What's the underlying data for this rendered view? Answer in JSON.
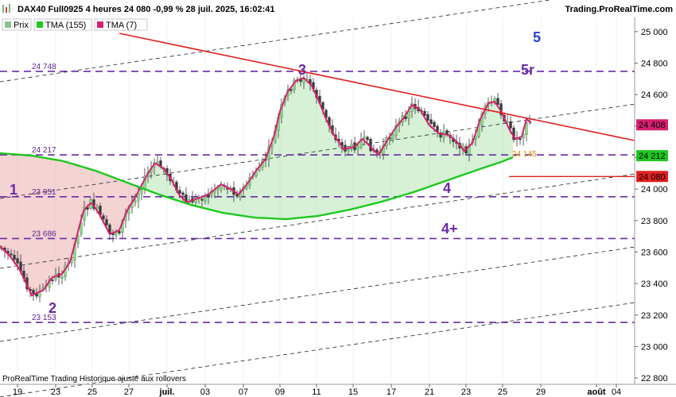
{
  "header": {
    "title": "DAX40 Full0925 4 heures 24 080 -0,99 % 28 juil. 2025, 16:02:41",
    "source": "Trading.ProRealTime.com"
  },
  "legend": [
    {
      "label": "Prix",
      "color": "#8bc28b"
    },
    {
      "label": "TMA (155)",
      "color": "#1ec81e"
    },
    {
      "label": "TMA (7)",
      "color": "#d6206e"
    }
  ],
  "footer": "ProRealTime Trading  Historique ajusté aux rollovers",
  "chart_data": {
    "type": "candlestick",
    "y_axis": {
      "range": [
        22760,
        25090
      ],
      "ticks": [
        25000,
        24800,
        24600,
        24400,
        24200,
        24000,
        23800,
        23600,
        23400,
        23200,
        23000,
        22800
      ],
      "tick_labels": [
        "25 000",
        "24 800",
        "24 600",
        "24 400",
        "24 200",
        "24 000",
        "23 800",
        "23 600",
        "23 400",
        "23 200",
        "23 000",
        "22 800"
      ]
    },
    "x_axis": {
      "tick_labels": [
        "19",
        "23",
        "25",
        "27",
        "juil.",
        "03",
        "07",
        "09",
        "11",
        "15",
        "17",
        "21",
        "23",
        "25",
        "29",
        "août",
        "04"
      ],
      "bold_labels": [
        "juil.",
        "août"
      ]
    },
    "horizontal_levels": [
      {
        "value": 24748,
        "label": "24 748"
      },
      {
        "value": 24217,
        "label": "24 217"
      },
      {
        "value": 23951,
        "label": "23 951"
      },
      {
        "value": 23686,
        "label": "23 686"
      },
      {
        "value": 23153,
        "label": "23 153"
      }
    ],
    "price_badges": [
      {
        "value": 24408,
        "label": "24 408",
        "color": "#d6206e"
      },
      {
        "value": 24212,
        "label": "24 212",
        "color": "#1ec81e"
      },
      {
        "value": 24080,
        "label": "24 080",
        "color": "#e02020"
      }
    ],
    "annotations": [
      {
        "text": "1",
        "color": "#6a2aa8"
      },
      {
        "text": "2",
        "color": "#6a2aa8"
      },
      {
        "text": "3",
        "color": "#6a2aa8"
      },
      {
        "text": "4",
        "color": "#6a2aa8"
      },
      {
        "text": "4+",
        "color": "#6a2aa8"
      },
      {
        "text": "5",
        "color": "#2a3fc8"
      },
      {
        "text": "5r",
        "color": "#6a2aa8"
      },
      {
        "text": "24 145",
        "color": "#e08a00"
      }
    ],
    "last_price": 24080,
    "series": [
      {
        "name": "Prix",
        "color": "#8bc28b"
      },
      {
        "name": "TMA (155)",
        "color": "#1ec81e"
      },
      {
        "name": "TMA (7)",
        "color": "#d6206e"
      }
    ]
  }
}
